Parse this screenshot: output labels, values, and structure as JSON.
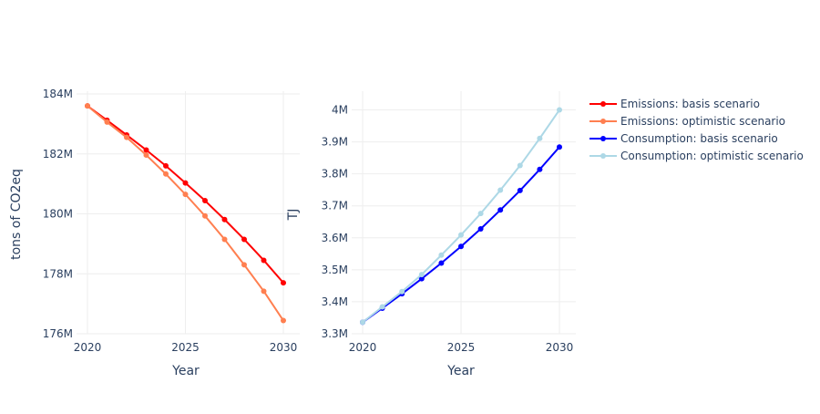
{
  "chart_data": [
    {
      "type": "line",
      "xlabel": "Year",
      "ylabel": "tons of CO2eq",
      "xlim": [
        2020,
        2030
      ],
      "ylim": [
        176,
        184
      ],
      "x_ticks": [
        "2020",
        "2025",
        "2030"
      ],
      "y_ticks": [
        "176M",
        "178M",
        "180M",
        "182M",
        "184M"
      ],
      "x": [
        2020,
        2021,
        2022,
        2023,
        2024,
        2025,
        2026,
        2027,
        2028,
        2029,
        2030
      ],
      "series": [
        {
          "name": "Emissions: basis scenario",
          "color": "#ff0000",
          "values": [
            183.6,
            183.12,
            182.63,
            182.13,
            181.6,
            181.03,
            180.44,
            179.81,
            179.15,
            178.45,
            177.7
          ]
        },
        {
          "name": "Emissions: optimistic scenario",
          "color": "#ff7f50",
          "values": [
            183.6,
            183.06,
            182.55,
            181.96,
            181.33,
            180.65,
            179.93,
            179.15,
            178.3,
            177.42,
            176.44
          ]
        }
      ]
    },
    {
      "type": "line",
      "xlabel": "Year",
      "ylabel": "TJ",
      "xlim": [
        2020,
        2030
      ],
      "ylim": [
        3.3,
        4.05
      ],
      "x_ticks": [
        "2020",
        "2025",
        "2030"
      ],
      "y_ticks": [
        "3.3M",
        "3.4M",
        "3.5M",
        "3.6M",
        "3.7M",
        "3.8M",
        "3.9M",
        "4M"
      ],
      "x": [
        2020,
        2021,
        2022,
        2023,
        2024,
        2025,
        2026,
        2027,
        2028,
        2029,
        2030
      ],
      "series": [
        {
          "name": "Consumption: basis scenario",
          "color": "#0000ff",
          "values": [
            3.336,
            3.38,
            3.425,
            3.472,
            3.521,
            3.573,
            3.628,
            3.687,
            3.748,
            3.814,
            3.884
          ]
        },
        {
          "name": "Consumption: optimistic scenario",
          "color": "#add8e6",
          "values": [
            3.336,
            3.384,
            3.432,
            3.485,
            3.546,
            3.609,
            3.676,
            3.749,
            3.826,
            3.911,
            4.0
          ]
        }
      ]
    }
  ],
  "legend": {
    "placement": "top-right",
    "items": [
      {
        "label": "Emissions: basis scenario",
        "color": "#ff0000"
      },
      {
        "label": "Emissions: optimistic scenario",
        "color": "#ff7f50"
      },
      {
        "label": "Consumption: basis scenario",
        "color": "#0000ff"
      },
      {
        "label": "Consumption: optimistic scenario",
        "color": "#add8e6"
      }
    ]
  }
}
